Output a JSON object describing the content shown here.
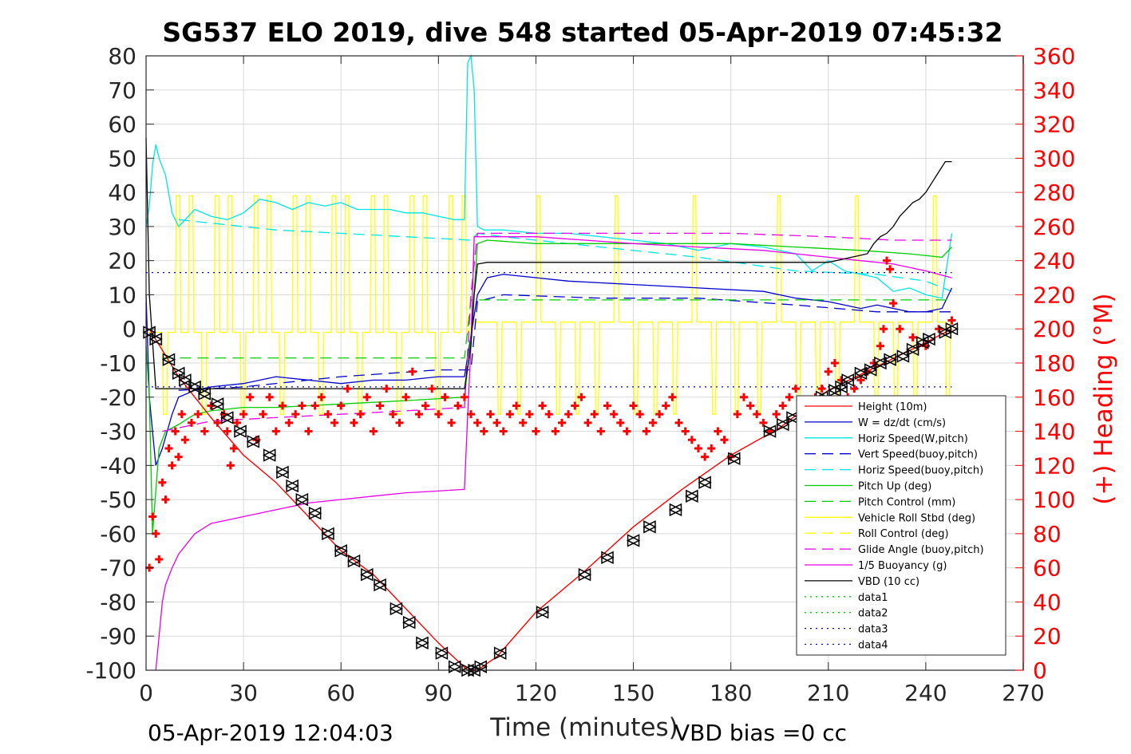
{
  "title": "SG537 ELO 2019, dive 548 started 05-Apr-2019 07:45:32",
  "footer": {
    "left": "05-Apr-2019 12:04:03",
    "right": "VBD bias =0 cc"
  },
  "colors": {
    "axis": "#262626",
    "right_axis": "#ff0000",
    "grid": "#d9d9d9",
    "height": "#ff0000",
    "w": "#0000cc",
    "horiz_w": "#00e5e5",
    "vert_buoy": "#0000cc",
    "horiz_buoy": "#00e5e5",
    "pitch_up": "#00cc00",
    "pitch_ctrl": "#00cc00",
    "roll": "#ffff00",
    "roll_ctrl": "#ffff00",
    "glide": "#e600e6",
    "buoyancy": "#e600e6",
    "vbd": "#000000",
    "heading_marker": "#ff0000"
  },
  "chart_data": {
    "type": "line",
    "xlabel": "Time (minutes)",
    "ylabel_right": "(+) Heading (°M)",
    "xlim": [
      0,
      270
    ],
    "ylim": [
      -100,
      80
    ],
    "ylim_right": [
      0,
      360
    ],
    "x_ticks": [
      0,
      30,
      60,
      90,
      120,
      150,
      180,
      210,
      240,
      270
    ],
    "y_ticks": [
      80,
      70,
      60,
      50,
      40,
      30,
      20,
      10,
      0,
      -10,
      -20,
      -30,
      -40,
      -50,
      -60,
      -70,
      -80,
      -90,
      -100
    ],
    "y_ticks_right": [
      360,
      340,
      320,
      300,
      280,
      260,
      240,
      220,
      200,
      180,
      160,
      140,
      120,
      100,
      80,
      60,
      40,
      20,
      0
    ],
    "grid": true,
    "legend_position": "lower-right",
    "legend": [
      {
        "name": "Height (10m)",
        "color": "#ff0000",
        "dash": "solid"
      },
      {
        "name": "W = dz/dt (cm/s)",
        "color": "#0000cc",
        "dash": "solid"
      },
      {
        "name": "Horiz Speed(W,pitch)",
        "color": "#00e5e5",
        "dash": "solid"
      },
      {
        "name": "Vert Speed(buoy,pitch)",
        "color": "#0000cc",
        "dash": "dashed"
      },
      {
        "name": "Horiz Speed(buoy,pitch)",
        "color": "#00e5e5",
        "dash": "dashed"
      },
      {
        "name": "Pitch Up (deg)",
        "color": "#00cc00",
        "dash": "solid"
      },
      {
        "name": "Pitch Control (mm)",
        "color": "#00cc00",
        "dash": "dashed"
      },
      {
        "name": "Vehicle Roll Stbd (deg)",
        "color": "#ffff00",
        "dash": "solid"
      },
      {
        "name": "Roll Control (deg)",
        "color": "#ffff00",
        "dash": "dashed"
      },
      {
        "name": "Glide Angle (buoy,pitch)",
        "color": "#e600e6",
        "dash": "dashed"
      },
      {
        "name": "1/5 Buoyancy (g)",
        "color": "#e600e6",
        "dash": "solid"
      },
      {
        "name": "VBD (10 cc)",
        "color": "#000000",
        "dash": "solid"
      },
      {
        "name": "data1",
        "color": "#00cc00",
        "dash": "dotted"
      },
      {
        "name": "data2",
        "color": "#00cc00",
        "dash": "dotted"
      },
      {
        "name": "data3",
        "color": "#0000cc",
        "dash": "dotted"
      },
      {
        "name": "data4",
        "color": "#0000cc",
        "dash": "dotted"
      }
    ],
    "series": [
      {
        "key": "height",
        "color": "#ff0000",
        "dash": "solid",
        "x": [
          1,
          10,
          20,
          30,
          40,
          50,
          60,
          70,
          80,
          90,
          99,
          102,
          108,
          120,
          135,
          150,
          165,
          180,
          195,
          210,
          225,
          240,
          248
        ],
        "y": [
          0,
          -14,
          -26,
          -37,
          -45,
          -55,
          -65,
          -72,
          -82,
          -92,
          -100,
          -100,
          -96,
          -83,
          -71,
          -58,
          -47,
          -37,
          -29,
          -18,
          -11,
          -4,
          0
        ]
      },
      {
        "key": "markers",
        "color": "#000000",
        "dash": "none",
        "marker": "triangle",
        "x": [
          1,
          3,
          7,
          10,
          12,
          15,
          18,
          22,
          25,
          29,
          33,
          38,
          42,
          45,
          48,
          52,
          56,
          60,
          64,
          68,
          72,
          77,
          81,
          85,
          91,
          95,
          99,
          101,
          103,
          109,
          122,
          135,
          142,
          150,
          155,
          163,
          168,
          172,
          181,
          192,
          196,
          199,
          204,
          208,
          212,
          214,
          216,
          220,
          223,
          226,
          229,
          233,
          236,
          239,
          241,
          246,
          248
        ],
        "y": [
          -1,
          -3,
          -9,
          -13,
          -15,
          -17,
          -19,
          -22,
          -26,
          -30,
          -33,
          -37,
          -42,
          -46,
          -50,
          -54,
          -60,
          -65,
          -68,
          -72,
          -75,
          -82,
          -86,
          -92,
          -95,
          -99,
          -100,
          -100,
          -99,
          -95,
          -83,
          -72,
          -67,
          -62,
          -58,
          -53,
          -49,
          -45,
          -38,
          -30,
          -28,
          -26,
          -23,
          -20,
          -18,
          -17,
          -15,
          -13,
          -12,
          -10,
          -9,
          -8,
          -6,
          -4,
          -3,
          -1,
          0
        ]
      },
      {
        "key": "horiz_w",
        "color": "#00e5e5",
        "dash": "solid",
        "x": [
          0,
          1,
          2,
          3,
          4,
          6,
          8,
          10,
          15,
          20,
          25,
          30,
          35,
          40,
          45,
          50,
          55,
          60,
          65,
          70,
          75,
          80,
          85,
          90,
          95,
          98,
          99,
          100,
          101,
          102,
          104,
          110,
          120,
          130,
          140,
          150,
          160,
          170,
          180,
          190,
          200,
          205,
          210,
          215,
          220,
          225,
          230,
          235,
          240,
          245,
          248
        ],
        "y": [
          30,
          36,
          48,
          54,
          50,
          45,
          34,
          30,
          35,
          33,
          32,
          34,
          38,
          37,
          35,
          37,
          36,
          37,
          35,
          35,
          35,
          34,
          34,
          33,
          32,
          32,
          78,
          80,
          70,
          30,
          29,
          29,
          28,
          28,
          27,
          26,
          25,
          23,
          25,
          24,
          22,
          17,
          20,
          17,
          16,
          15,
          11,
          12,
          10,
          9,
          28
        ]
      },
      {
        "key": "horiz_buoy",
        "color": "#00e5e5",
        "dash": "dashed",
        "x": [
          10,
          20,
          40,
          60,
          80,
          100,
          102,
          110,
          140,
          170,
          200,
          225,
          240,
          248
        ],
        "y": [
          32,
          31,
          29,
          28,
          27,
          26,
          28,
          27,
          24,
          21,
          17,
          16,
          14,
          11
        ]
      },
      {
        "key": "w",
        "color": "#0000cc",
        "dash": "solid",
        "x": [
          0,
          1,
          2,
          3,
          5,
          8,
          10,
          15,
          20,
          30,
          40,
          50,
          60,
          70,
          80,
          90,
          98,
          100,
          102,
          105,
          110,
          130,
          150,
          170,
          190,
          200,
          210,
          220,
          225,
          235,
          240,
          245,
          248
        ],
        "y": [
          10,
          -20,
          -30,
          -40,
          -35,
          -25,
          -20,
          -18,
          -17,
          -16,
          -14,
          -15,
          -16,
          -15,
          -15,
          -14,
          -14,
          -2,
          10,
          15,
          16,
          14,
          13,
          12,
          11,
          9,
          8,
          6,
          7,
          5,
          5,
          6,
          12
        ]
      },
      {
        "key": "vert_buoy",
        "color": "#0000cc",
        "dash": "dashed",
        "x": [
          10,
          30,
          60,
          90,
          100,
          102,
          110,
          140,
          170,
          200,
          225,
          248
        ],
        "y": [
          -18,
          -17,
          -14,
          -12,
          -12,
          8,
          10,
          9,
          9,
          7,
          5,
          5
        ]
      },
      {
        "key": "pitch_up",
        "color": "#00cc00",
        "dash": "solid",
        "x": [
          0,
          1,
          2,
          4,
          6,
          10,
          15,
          20,
          30,
          40,
          60,
          80,
          98,
          100,
          102,
          105,
          120,
          140,
          160,
          180,
          200,
          220,
          235,
          245,
          248
        ],
        "y": [
          -5,
          -20,
          -60,
          -35,
          -30,
          -28,
          -25,
          -24,
          -23,
          -23,
          -22,
          -21,
          -20,
          -3,
          25,
          26,
          25,
          25,
          25,
          25,
          24,
          23,
          22,
          21,
          24
        ]
      },
      {
        "key": "pitch_ctrl",
        "color": "#00cc00",
        "dash": "dashed",
        "x": [
          5,
          50,
          98,
          100,
          102,
          248
        ],
        "y": [
          -8.5,
          -8.5,
          -8.5,
          8.5,
          8.5,
          8.5
        ]
      },
      {
        "key": "glide",
        "color": "#e600e6",
        "dash": "dashed",
        "x": [
          5,
          20,
          40,
          60,
          80,
          98,
          100,
          102,
          120,
          150,
          180,
          210,
          230,
          248
        ],
        "y": [
          -30,
          -27,
          -26,
          -25,
          -24,
          -23,
          10,
          28,
          28,
          28,
          28,
          27,
          26,
          26
        ]
      },
      {
        "key": "buoyancy",
        "color": "#e600e6",
        "dash": "solid",
        "x": [
          3,
          4,
          5,
          6,
          8,
          10,
          15,
          20,
          30,
          40,
          50,
          60,
          70,
          80,
          90,
          98,
          99,
          100,
          101,
          120,
          150,
          170,
          190,
          200,
          210,
          220,
          230,
          240,
          248
        ],
        "y": [
          -100,
          -90,
          -80,
          -75,
          -70,
          -66,
          -60,
          -57,
          -55,
          -53,
          -51,
          -50,
          -49,
          -48,
          -47.5,
          -47,
          -25,
          -5,
          27,
          27,
          25,
          24,
          23,
          22,
          21,
          20,
          19,
          17,
          15
        ]
      },
      {
        "key": "vbd",
        "color": "#000000",
        "dash": "solid",
        "x": [
          0,
          1,
          3,
          10,
          50,
          98,
          100,
          101,
          102,
          105,
          150,
          210,
          222,
          224,
          226,
          228,
          230,
          232,
          234,
          236,
          238,
          240,
          242,
          244,
          246,
          248
        ],
        "y": [
          56,
          10,
          -17.5,
          -17.5,
          -17.5,
          -17.5,
          -5,
          10,
          19,
          19.5,
          19.5,
          19.5,
          22,
          25,
          27,
          28,
          30,
          33,
          35,
          37,
          38,
          40,
          43,
          46,
          49,
          49
        ]
      },
      {
        "key": "data3",
        "color": "#0000cc",
        "dash": "dotted",
        "x": [
          0,
          248
        ],
        "y": [
          16.5,
          16.5
        ]
      },
      {
        "key": "data4",
        "color": "#0000cc",
        "dash": "dotted",
        "x": [
          0,
          248
        ],
        "y": [
          -17,
          -17
        ]
      }
    ],
    "roll": {
      "color": "#ffff00",
      "base_dive": -1,
      "base_climb": 2,
      "pulse_low": -25,
      "pulse_high": 39,
      "dive_pulses_x": [
        5,
        9,
        13,
        17,
        21,
        25,
        29,
        33,
        37,
        41,
        45,
        49,
        53,
        57,
        61,
        65,
        69,
        73,
        77,
        81,
        85,
        89,
        93,
        97
      ],
      "climb_pulses_x": [
        108,
        114,
        120,
        126,
        132,
        138,
        144,
        150,
        156,
        162,
        168,
        174,
        181,
        188,
        194,
        200,
        206,
        212,
        218,
        224,
        230,
        236,
        242,
        246
      ]
    },
    "heading": {
      "color": "#ff0000",
      "axis": "right",
      "x": [
        1,
        2,
        3,
        4,
        5,
        6,
        7,
        8,
        9,
        10,
        11,
        12,
        14,
        16,
        18,
        20,
        22,
        24,
        25,
        26,
        27,
        28,
        30,
        32,
        34,
        36,
        38,
        40,
        42,
        44,
        46,
        48,
        50,
        52,
        54,
        56,
        58,
        60,
        62,
        64,
        66,
        68,
        70,
        72,
        74,
        76,
        78,
        80,
        82,
        84,
        86,
        88,
        90,
        92,
        94,
        96,
        98,
        100,
        102,
        104,
        106,
        108,
        110,
        112,
        114,
        116,
        118,
        120,
        122,
        124,
        126,
        128,
        130,
        132,
        134,
        136,
        138,
        140,
        142,
        144,
        146,
        148,
        150,
        152,
        154,
        156,
        158,
        160,
        162,
        164,
        166,
        168,
        170,
        172,
        174,
        176,
        178,
        180,
        182,
        184,
        186,
        188,
        190,
        192,
        194,
        196,
        198,
        200,
        202,
        204,
        206,
        208,
        210,
        212,
        214,
        216,
        218,
        220,
        222,
        224,
        226,
        227,
        228,
        229,
        230,
        232,
        236,
        240,
        244,
        248
      ],
      "y": [
        60,
        90,
        80,
        65,
        110,
        100,
        130,
        120,
        140,
        125,
        150,
        135,
        145,
        150,
        140,
        155,
        145,
        150,
        140,
        120,
        130,
        145,
        150,
        160,
        135,
        150,
        160,
        140,
        155,
        145,
        150,
        155,
        140,
        155,
        160,
        150,
        145,
        155,
        165,
        145,
        150,
        160,
        140,
        155,
        165,
        150,
        145,
        160,
        175,
        150,
        155,
        165,
        150,
        160,
        145,
        155,
        160,
        150,
        145,
        140,
        150,
        145,
        140,
        150,
        155,
        145,
        150,
        140,
        155,
        150,
        140,
        145,
        150,
        155,
        160,
        145,
        150,
        140,
        155,
        150,
        145,
        140,
        155,
        150,
        140,
        145,
        150,
        155,
        160,
        145,
        140,
        135,
        130,
        125,
        130,
        140,
        135,
        125,
        150,
        160,
        155,
        150,
        145,
        140,
        150,
        155,
        160,
        165,
        150,
        145,
        160,
        165,
        175,
        180,
        170,
        160,
        165,
        170,
        175,
        180,
        190,
        200,
        240,
        235,
        215,
        200,
        195,
        190,
        200,
        205
      ]
    }
  }
}
